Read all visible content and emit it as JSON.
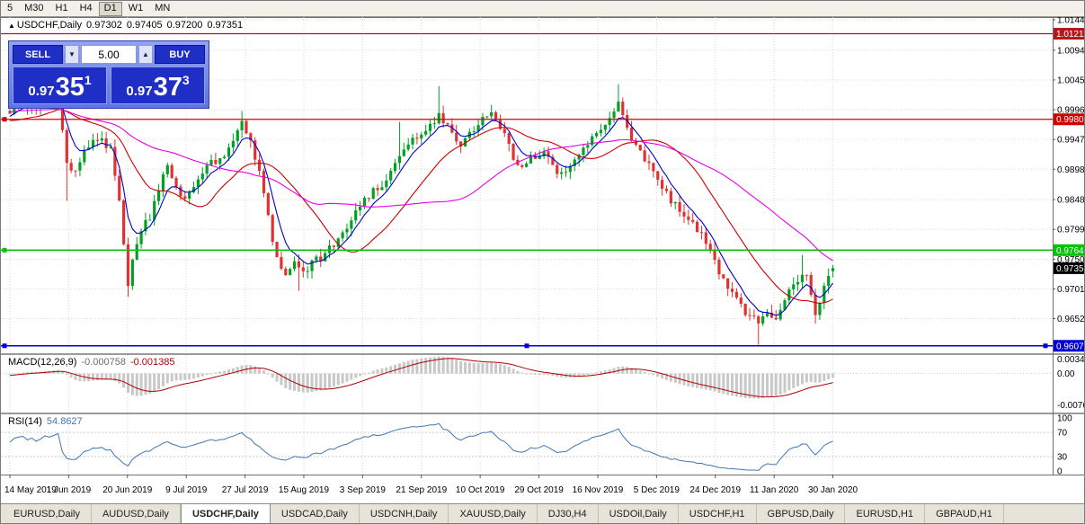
{
  "toolbar": {
    "timeframes": [
      "5",
      "M30",
      "H1",
      "H4",
      "D1",
      "W1",
      "MN"
    ],
    "active": "D1"
  },
  "symbol_info": {
    "collapse_icon": "▲",
    "title": "USDCHF,Daily",
    "open": "0.97302",
    "high": "0.97405",
    "low": "0.97200",
    "close": "0.97351"
  },
  "trade_panel": {
    "sell_label": "SELL",
    "buy_label": "BUY",
    "volume": "5.00",
    "volume_down_icon": "▼",
    "volume_up_icon": "▲",
    "sell_price": {
      "prefix": "0.97",
      "big": "35",
      "sup": "1"
    },
    "buy_price": {
      "prefix": "0.97",
      "big": "37",
      "sup": "3"
    }
  },
  "price_axis": {
    "labels": [
      "1.01440",
      "1.00940",
      "1.00450",
      "0.99960",
      "0.99470",
      "0.98980",
      "0.98480",
      "0.97990",
      "0.97500",
      "0.97010",
      "0.96520"
    ],
    "top_value": 1.01485,
    "bottom_value": 0.95951
  },
  "levels": [
    {
      "value": 1.01211,
      "label": "1.01211",
      "color": "#B21A1A",
      "selected": false,
      "handles": false,
      "width": 1.2
    },
    {
      "value": 0.99802,
      "label": "0.99802",
      "color": "#D40000",
      "selected": false,
      "handles": true,
      "width": 1.2
    },
    {
      "value": 0.97648,
      "label": "0.97648",
      "color": "#00C400",
      "selected": false,
      "handles": true,
      "width": 1.6
    },
    {
      "value": 0.96073,
      "label": "0.96073",
      "color": "#0000D4",
      "selected": true,
      "handles": true,
      "width": 1.6
    }
  ],
  "current_price": {
    "value": "0.97351",
    "label": "0.97351",
    "bg": "#000000"
  },
  "macd": {
    "label": "MACD(12,26,9)",
    "value_main": "-0.000758",
    "value_signal": "-0.001385",
    "axis": [
      "0.00348",
      "0.00",
      "-0.00761"
    ],
    "histogram_color": "#C8C8C8",
    "signal_color": "#B00000"
  },
  "rsi": {
    "label": "RSI(14)",
    "value": "54.8627",
    "axis": [
      "100",
      "70",
      "30",
      "0"
    ],
    "levels": [
      70,
      30
    ],
    "color": "#4076B4"
  },
  "date_axis": [
    "14 May 2019",
    "1 Jun 2019",
    "20 Jun 2019",
    "9 Jul 2019",
    "27 Jul 2019",
    "15 Aug 2019",
    "3 Sep 2019",
    "21 Sep 2019",
    "10 Oct 2019",
    "29 Oct 2019",
    "16 Nov 2019",
    "5 Dec 2019",
    "24 Dec 2019",
    "11 Jan 2020",
    "30 Jan 2020"
  ],
  "tabs": [
    {
      "label": "EURUSD,Daily",
      "active": false
    },
    {
      "label": "AUDUSD,Daily",
      "active": false
    },
    {
      "label": "USDCHF,Daily",
      "active": true
    },
    {
      "label": "USDCAD,Daily",
      "active": false
    },
    {
      "label": "USDCNH,Daily",
      "active": false
    },
    {
      "label": "XAUUSD,Daily",
      "active": false
    },
    {
      "label": "DJ30,H4",
      "active": false
    },
    {
      "label": "USDOil,Daily",
      "active": false
    },
    {
      "label": "USDCHF,H1",
      "active": false
    },
    {
      "label": "GBPUSD,Daily",
      "active": false
    },
    {
      "label": "EURUSD,H1",
      "active": false
    },
    {
      "label": "GBPAUD,H1",
      "active": false
    }
  ],
  "chart_data": {
    "type": "candlestick",
    "title": "USDCHF,Daily",
    "x_range": [
      "14 May 2019",
      "30 Jan 2020"
    ],
    "ylim": [
      0.95951,
      1.01485
    ],
    "candles": 189,
    "last_candle": {
      "open": 0.97302,
      "high": 0.97405,
      "low": 0.972,
      "close": 0.97351
    },
    "up_color": "#00A124",
    "down_color": "#DF3333",
    "anchors": [
      [
        0,
        0.9995
      ],
      [
        3,
        1.0008
      ],
      [
        6,
        1.0
      ],
      [
        9,
        1.0018
      ],
      [
        11,
        1.0026
      ],
      [
        13,
        0.9902
      ],
      [
        15,
        0.9892
      ],
      [
        17,
        0.9928
      ],
      [
        20,
        0.9948
      ],
      [
        23,
        0.9934
      ],
      [
        25,
        0.9845
      ],
      [
        27,
        0.97
      ],
      [
        28,
        0.9752
      ],
      [
        30,
        0.9798
      ],
      [
        32,
        0.9818
      ],
      [
        34,
        0.9868
      ],
      [
        36,
        0.9904
      ],
      [
        38,
        0.9872
      ],
      [
        40,
        0.9846
      ],
      [
        43,
        0.988
      ],
      [
        46,
        0.9908
      ],
      [
        49,
        0.992
      ],
      [
        51,
        0.9948
      ],
      [
        53,
        0.9972
      ],
      [
        55,
        0.994
      ],
      [
        57,
        0.9898
      ],
      [
        59,
        0.982
      ],
      [
        61,
        0.9748
      ],
      [
        63,
        0.9722
      ],
      [
        65,
        0.974
      ],
      [
        67,
        0.9726
      ],
      [
        69,
        0.9744
      ],
      [
        71,
        0.9752
      ],
      [
        74,
        0.9774
      ],
      [
        77,
        0.9796
      ],
      [
        80,
        0.9838
      ],
      [
        83,
        0.9864
      ],
      [
        86,
        0.988
      ],
      [
        89,
        0.9918
      ],
      [
        92,
        0.9944
      ],
      [
        95,
        0.9964
      ],
      [
        98,
        0.9988
      ],
      [
        100,
        0.9968
      ],
      [
        103,
        0.993
      ],
      [
        105,
        0.9958
      ],
      [
        108,
        0.9978
      ],
      [
        110,
        0.9992
      ],
      [
        113,
        0.9958
      ],
      [
        116,
        0.99
      ],
      [
        119,
        0.9914
      ],
      [
        122,
        0.9928
      ],
      [
        124,
        0.9902
      ],
      [
        126,
        0.989
      ],
      [
        129,
        0.9914
      ],
      [
        132,
        0.9944
      ],
      [
        135,
        0.9964
      ],
      [
        137,
        0.9984
      ],
      [
        139,
        1.0004
      ],
      [
        141,
        0.9968
      ],
      [
        143,
        0.9934
      ],
      [
        146,
        0.9904
      ],
      [
        148,
        0.9878
      ],
      [
        151,
        0.9848
      ],
      [
        154,
        0.9826
      ],
      [
        157,
        0.98
      ],
      [
        159,
        0.9776
      ],
      [
        161,
        0.9746
      ],
      [
        163,
        0.9716
      ],
      [
        165,
        0.9696
      ],
      [
        167,
        0.9672
      ],
      [
        169,
        0.9656
      ],
      [
        171,
        0.9646
      ],
      [
        173,
        0.966
      ],
      [
        175,
        0.965
      ],
      [
        177,
        0.9684
      ],
      [
        179,
        0.9704
      ],
      [
        181,
        0.9724
      ],
      [
        182,
        0.9718
      ],
      [
        184,
        0.9652
      ],
      [
        186,
        0.97
      ],
      [
        188,
        0.97351
      ]
    ],
    "spikes": [
      {
        "i": 11,
        "high": 1.0046
      },
      {
        "i": 13,
        "low": 0.9846
      },
      {
        "i": 27,
        "low": 0.9688
      },
      {
        "i": 53,
        "high": 0.9994
      },
      {
        "i": 66,
        "low": 0.9698
      },
      {
        "i": 89,
        "high": 0.9976
      },
      {
        "i": 98,
        "high": 1.0035
      },
      {
        "i": 110,
        "high": 1.0004
      },
      {
        "i": 139,
        "high": 1.0038
      },
      {
        "i": 171,
        "low": 0.9609
      },
      {
        "i": 181,
        "high": 0.9757
      },
      {
        "i": 184,
        "low": 0.9644
      }
    ],
    "ma": [
      {
        "period": 6,
        "type": "ema",
        "color": "#0000CC"
      },
      {
        "period": 20,
        "type": "sma",
        "color": "#CC0000"
      },
      {
        "period": 45,
        "type": "sma",
        "color": "#E800E8"
      }
    ]
  }
}
